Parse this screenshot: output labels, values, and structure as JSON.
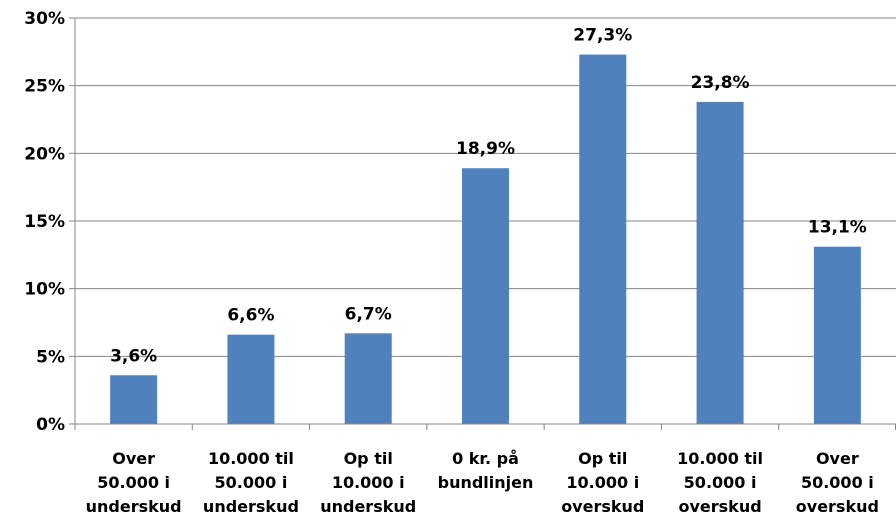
{
  "chart_data": {
    "type": "bar",
    "categories": [
      [
        "Over",
        "50.000 i",
        "underskud"
      ],
      [
        "10.000 til",
        "50.000 i",
        "underskud"
      ],
      [
        "Op til",
        "10.000 i",
        "underskud"
      ],
      [
        "0 kr. på",
        "bundlinjen"
      ],
      [
        "Op til",
        "10.000 i",
        "overskud"
      ],
      [
        "10.000 til",
        "50.000 i",
        "overskud"
      ],
      [
        "Over",
        "50.000 i",
        "overskud"
      ]
    ],
    "values": [
      3.6,
      6.6,
      6.7,
      18.9,
      27.3,
      23.8,
      13.1
    ],
    "data_labels": [
      "3,6%",
      "6,6%",
      "6,7%",
      "18,9%",
      "27,3%",
      "23,8%",
      "13,1%"
    ],
    "y_ticks": [
      0,
      5,
      10,
      15,
      20,
      25,
      30
    ],
    "y_tick_labels": [
      "0%",
      "5%",
      "10%",
      "15%",
      "20%",
      "25%",
      "30%"
    ],
    "ylim": [
      0,
      30
    ],
    "grid": true,
    "legend": "none",
    "bar_color": "#4f81bd",
    "grid_color": "#868686"
  }
}
